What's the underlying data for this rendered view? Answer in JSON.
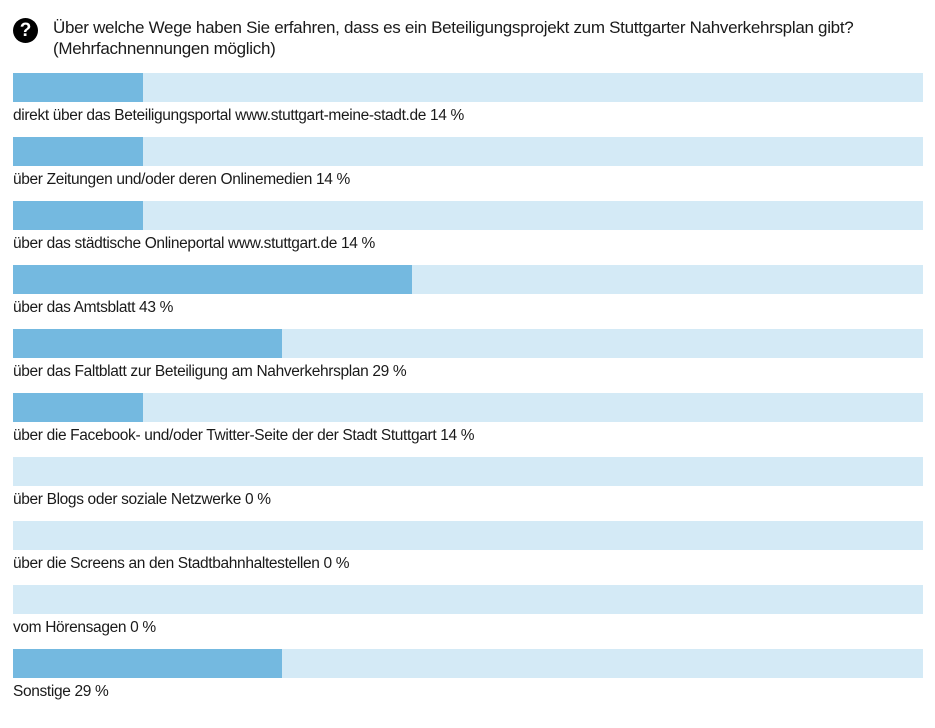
{
  "question": {
    "icon": "question-circle-icon",
    "icon_glyph": "?",
    "text": "Über welche Wege haben Sie erfahren, dass es ein Beteiligungsprojekt zum Stuttgarter Nahverkehrsplan gibt?",
    "note": "(Mehrfachnennungen möglich)"
  },
  "colors": {
    "fill": "#74b9e0",
    "track": "#d4eaf6"
  },
  "chart_data": {
    "type": "bar",
    "orientation": "horizontal",
    "title": "Über welche Wege haben Sie erfahren, dass es ein Beteiligungsprojekt zum Stuttgarter Nahverkehrsplan gibt? (Mehrfachnennungen möglich)",
    "xlim": [
      0,
      100
    ],
    "unit": "%",
    "categories": [
      "direkt über das Beteiligungsportal www.stuttgart-meine-stadt.de",
      "über Zeitungen und/oder deren Onlinemedien",
      "über das städtische Onlineportal www.stuttgart.de",
      "über das Amtsblatt",
      "über das Faltblatt zur Beteiligung am Nahverkehrsplan",
      "über die Facebook- und/oder Twitter-Seite der der Stadt Stuttgart",
      "über Blogs oder soziale Netzwerke",
      "über die Screens an den Stadtbahnhaltestellen",
      "vom Hörensagen",
      "Sonstige"
    ],
    "values": [
      14,
      14,
      14,
      43,
      29,
      14,
      0,
      0,
      0,
      29
    ]
  }
}
